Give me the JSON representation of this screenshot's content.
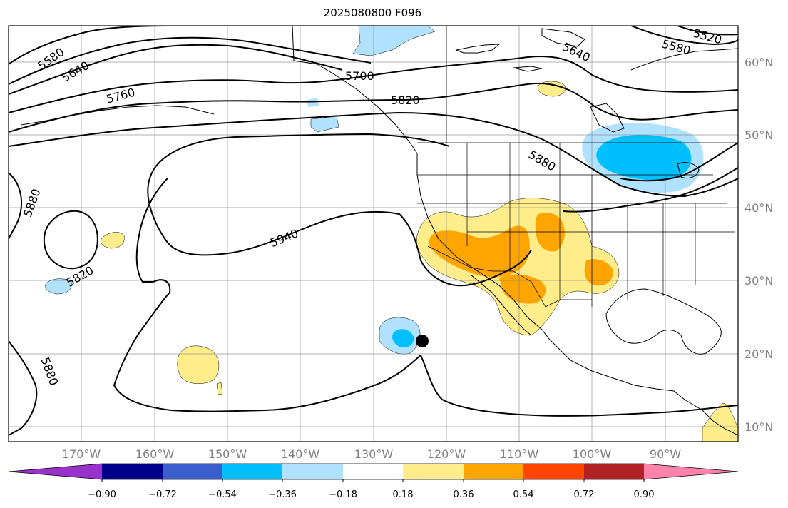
{
  "title": "2025080800 F096",
  "map": {
    "type": "height-contour-anomaly-map",
    "projection": "PlateCarree",
    "lon_range": [
      "180°W",
      "80°W"
    ],
    "lat_range": [
      "8°N",
      "65°N"
    ],
    "grid": true,
    "lat_labels": [
      "60°N",
      "50°N",
      "40°N",
      "30°N",
      "20°N",
      "10°N"
    ],
    "lon_labels": [
      "170°W",
      "160°W",
      "150°W",
      "140°W",
      "130°W",
      "120°W",
      "110°W",
      "100°W",
      "90°W"
    ],
    "contour_labels": [
      "5580",
      "5640",
      "5760",
      "5700",
      "5820",
      "5640",
      "5520",
      "5580",
      "5880",
      "5940",
      "5820",
      "5880",
      "5880"
    ],
    "marker": {
      "name": "point-marker",
      "lon": -123,
      "lat": 21.8
    }
  },
  "colorbar": {
    "tick_labels": [
      "−0.90",
      "−0.72",
      "−0.54",
      "−0.36",
      "−0.18",
      "0.18",
      "0.36",
      "0.54",
      "0.72",
      "0.90"
    ],
    "colors": [
      "#9932cc",
      "#00008b",
      "#3a5fcd",
      "#00bfff",
      "#b0e2ff",
      "#ffffff",
      "#ffec8b",
      "#ffa500",
      "#ff4500",
      "#b22222",
      "#ff82ab"
    ],
    "extend": "both"
  }
}
